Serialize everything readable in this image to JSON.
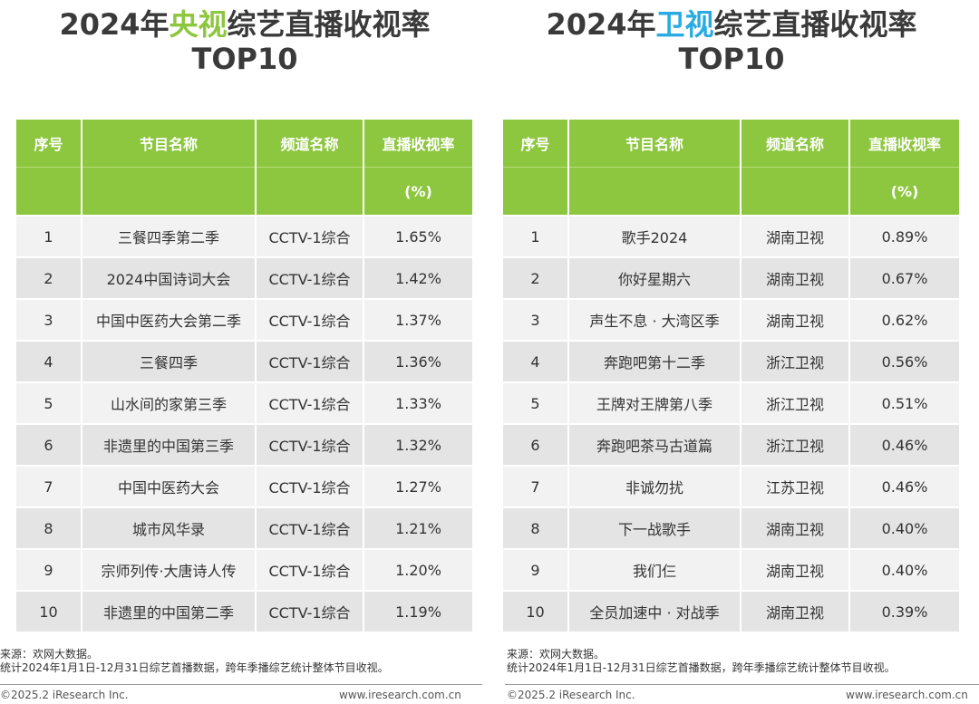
{
  "left": {
    "title_pre": "2024年",
    "title_hl": "央视",
    "title_post": "综艺直播收视率",
    "title_line2": "TOP10",
    "headers": {
      "rank": "序号",
      "program": "节目名称",
      "channel": "频道名称",
      "rating": "直播收视率",
      "unit": "(%)"
    },
    "rows": [
      {
        "rank": "1",
        "program": "三餐四季第二季",
        "channel": "CCTV-1综合",
        "rating": "1.65%"
      },
      {
        "rank": "2",
        "program": "2024中国诗词大会",
        "channel": "CCTV-1综合",
        "rating": "1.42%"
      },
      {
        "rank": "3",
        "program": "中国中医药大会第二季",
        "channel": "CCTV-1综合",
        "rating": "1.37%"
      },
      {
        "rank": "4",
        "program": "三餐四季",
        "channel": "CCTV-1综合",
        "rating": "1.36%"
      },
      {
        "rank": "5",
        "program": "山水间的家第三季",
        "channel": "CCTV-1综合",
        "rating": "1.33%"
      },
      {
        "rank": "6",
        "program": "非遗里的中国第三季",
        "channel": "CCTV-1综合",
        "rating": "1.32%"
      },
      {
        "rank": "7",
        "program": "中国中医药大会",
        "channel": "CCTV-1综合",
        "rating": "1.27%"
      },
      {
        "rank": "8",
        "program": "城市风华录",
        "channel": "CCTV-1综合",
        "rating": "1.21%"
      },
      {
        "rank": "9",
        "program": "宗师列传·大唐诗人传",
        "channel": "CCTV-1综合",
        "rating": "1.20%"
      },
      {
        "rank": "10",
        "program": "非遗里的中国第二季",
        "channel": "CCTV-1综合",
        "rating": "1.19%"
      }
    ],
    "source_line1": "来源：欢网大数据。",
    "source_line2": "统计2024年1月1日-12月31日综艺首播数据，跨年季播综艺统计整体节目收视。",
    "copyright": "©2025.2 iResearch Inc.",
    "site": "www.iresearch.com.cn"
  },
  "right": {
    "title_pre": "2024年",
    "title_hl": "卫视",
    "title_post": "综艺直播收视率",
    "title_line2": "TOP10",
    "headers": {
      "rank": "序号",
      "program": "节目名称",
      "channel": "频道名称",
      "rating": "直播收视率",
      "unit": "(%)"
    },
    "rows": [
      {
        "rank": "1",
        "program": "歌手2024",
        "channel": "湖南卫视",
        "rating": "0.89%"
      },
      {
        "rank": "2",
        "program": "你好星期六",
        "channel": "湖南卫视",
        "rating": "0.67%"
      },
      {
        "rank": "3",
        "program": "声生不息 · 大湾区季",
        "channel": "湖南卫视",
        "rating": "0.62%"
      },
      {
        "rank": "4",
        "program": "奔跑吧第十二季",
        "channel": "浙江卫视",
        "rating": "0.56%"
      },
      {
        "rank": "5",
        "program": "王牌对王牌第八季",
        "channel": "浙江卫视",
        "rating": "0.51%"
      },
      {
        "rank": "6",
        "program": "奔跑吧茶马古道篇",
        "channel": "浙江卫视",
        "rating": "0.46%"
      },
      {
        "rank": "7",
        "program": "非诚勿扰",
        "channel": "江苏卫视",
        "rating": "0.46%"
      },
      {
        "rank": "8",
        "program": "下一战歌手",
        "channel": "湖南卫视",
        "rating": "0.40%"
      },
      {
        "rank": "9",
        "program": "我们仨",
        "channel": "湖南卫视",
        "rating": "0.40%"
      },
      {
        "rank": "10",
        "program": "全员加速中 · 对战季",
        "channel": "湖南卫视",
        "rating": "0.39%"
      }
    ],
    "source_line1": "来源：欢网大数据。",
    "source_line2": "统计2024年1月1日-12月31日综艺首播数据，跨年季播综艺统计整体节目收视。",
    "copyright": "©2025.2 iResearch Inc.",
    "site": "www.iresearch.com.cn"
  },
  "colors": {
    "header_green": "#8dc63f",
    "highlight_blue": "#29abe2",
    "row_light": "#f2f2f2",
    "row_dark": "#e4e4e4"
  }
}
